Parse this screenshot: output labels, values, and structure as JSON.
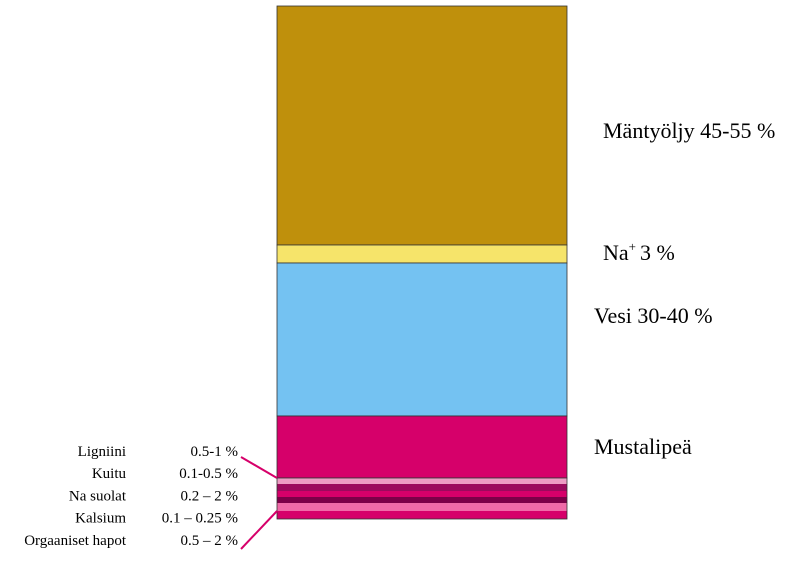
{
  "layers": [
    {
      "label": "Mäntyöljy 45-55 %"
    },
    {
      "label_base": "Na",
      "label_sup": "+",
      "label_rest": "3 %"
    },
    {
      "label": "Vesi 30-40 %"
    },
    {
      "label": "Mustalipeä"
    }
  ],
  "components": [
    {
      "name": "Ligniini",
      "value": "0.5-1 %"
    },
    {
      "name": "Kuitu",
      "value": "0.1-0.5 %"
    },
    {
      "name": "Na suolat",
      "value": "0.2 – 2 %"
    },
    {
      "name": "Kalsium",
      "value": "0.1 – 0.25 %"
    },
    {
      "name": "Orgaaniset hapot",
      "value": "0.5 – 2 %"
    }
  ]
}
